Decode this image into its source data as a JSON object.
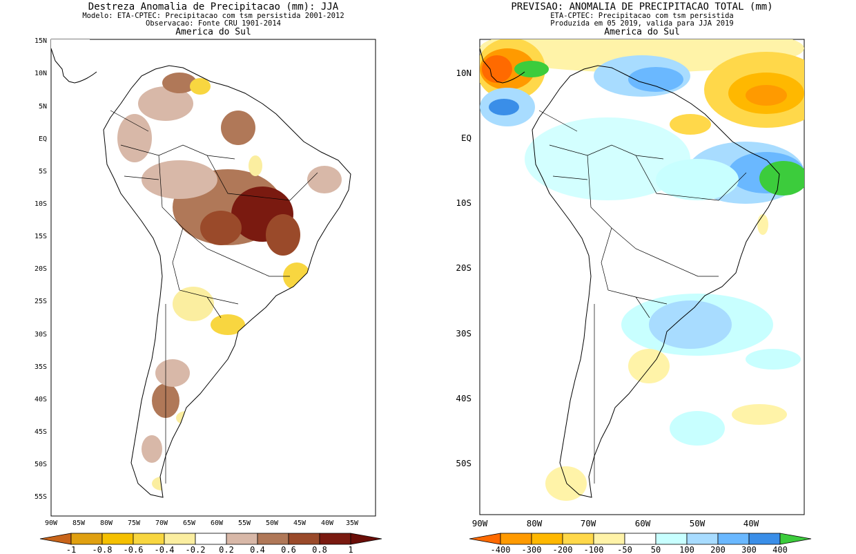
{
  "left_map": {
    "title": "Destreza Anomalia de Precipitacao (mm): JJA",
    "subtitle1": "Modelo: ETA-CPTEC: Precipitacao com tsm persistida 2001-2012",
    "subtitle2": "Observacao: Fonte CRU 1901-2014",
    "region": "America do Sul",
    "lat_labels": [
      "15N",
      "10N",
      "5N",
      "EQ",
      "5S",
      "10S",
      "15S",
      "20S",
      "25S",
      "30S",
      "35S",
      "40S",
      "45S",
      "50S",
      "55S"
    ],
    "lon_labels": [
      "90W",
      "85W",
      "80W",
      "75W",
      "70W",
      "65W",
      "60W",
      "55W",
      "50W",
      "45W",
      "40W",
      "35W"
    ],
    "colorbar": {
      "labels": [
        "-1",
        "-0.8",
        "-0.6",
        "-0.4",
        "-0.2",
        "0.2",
        "0.4",
        "0.6",
        "0.8",
        "1"
      ],
      "colors": [
        "#c8641a",
        "#e0a010",
        "#f5c000",
        "#f8d640",
        "#fbeea0",
        "#ffffff",
        "#d8b8a8",
        "#b07858",
        "#9a4a2a",
        "#7a1a10",
        "#6a0e08"
      ]
    }
  },
  "right_map": {
    "title": "PREVISAO: ANOMALIA DE PRECIPITACAO TOTAL (mm)",
    "subtitle1": "ETA-CPTEC: Precipitacao com tsm persistida",
    "subtitle2": "Produzida em 05 2019, valida para JJA 2019",
    "region": "America do Sul",
    "lat_labels": [
      "10N",
      "EQ",
      "10S",
      "20S",
      "30S",
      "40S",
      "50S"
    ],
    "lon_labels": [
      "90W",
      "80W",
      "70W",
      "60W",
      "50W",
      "40W"
    ],
    "colorbar": {
      "labels": [
        "-400",
        "-300",
        "-200",
        "-100",
        "-50",
        "50",
        "100",
        "200",
        "300",
        "400"
      ],
      "colors": [
        "#ff6a00",
        "#ff9a00",
        "#ffb800",
        "#ffd84a",
        "#fff3a8",
        "#ffffff",
        "#c8ffff",
        "#a8dcff",
        "#6ab8ff",
        "#3a8ee8",
        "#3ccc3c"
      ]
    }
  }
}
